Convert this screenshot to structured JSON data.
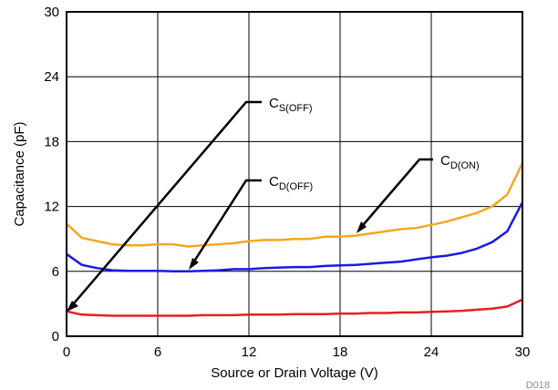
{
  "chart_data": {
    "type": "line",
    "xlabel": "Source or Drain Voltage (V)",
    "ylabel": "Capacitance (pF)",
    "xlim": [
      0,
      30
    ],
    "ylim": [
      0,
      30
    ],
    "xticks": [
      0,
      6,
      12,
      18,
      24,
      30
    ],
    "yticks": [
      0,
      6,
      12,
      18,
      24,
      30
    ],
    "grid": true,
    "figure_id": "D018",
    "series": [
      {
        "label_main": "C",
        "label_sub": "D(ON)",
        "color": "#f5a623",
        "x": [
          0,
          1,
          2,
          3,
          4,
          5,
          6,
          7,
          8,
          9,
          10,
          11,
          12,
          13,
          14,
          15,
          16,
          17,
          18,
          19,
          20,
          21,
          22,
          23,
          24,
          25,
          26,
          27,
          28,
          29,
          30
        ],
        "y": [
          10.4,
          9.1,
          8.8,
          8.5,
          8.4,
          8.4,
          8.5,
          8.5,
          8.3,
          8.4,
          8.5,
          8.6,
          8.8,
          8.9,
          8.9,
          9.0,
          9.0,
          9.2,
          9.2,
          9.3,
          9.5,
          9.7,
          9.9,
          10.0,
          10.3,
          10.6,
          11.0,
          11.4,
          12.0,
          13.1,
          16.0
        ]
      },
      {
        "label_main": "C",
        "label_sub": "D(OFF)",
        "color": "#1a1ae6",
        "x": [
          0,
          1,
          2,
          3,
          4,
          5,
          6,
          7,
          8,
          9,
          10,
          11,
          12,
          13,
          14,
          15,
          16,
          17,
          18,
          19,
          20,
          21,
          22,
          23,
          24,
          25,
          26,
          27,
          28,
          29,
          30
        ],
        "y": [
          7.6,
          6.6,
          6.3,
          6.1,
          6.05,
          6.05,
          6.05,
          6.0,
          6.0,
          6.05,
          6.1,
          6.2,
          6.2,
          6.3,
          6.35,
          6.4,
          6.4,
          6.5,
          6.55,
          6.6,
          6.7,
          6.8,
          6.9,
          7.1,
          7.3,
          7.45,
          7.7,
          8.1,
          8.7,
          9.7,
          12.4
        ]
      },
      {
        "label_main": "C",
        "label_sub": "S(OFF)",
        "color": "#e62020",
        "x": [
          0,
          1,
          2,
          3,
          4,
          5,
          6,
          7,
          8,
          9,
          10,
          11,
          12,
          13,
          14,
          15,
          16,
          17,
          18,
          19,
          20,
          21,
          22,
          23,
          24,
          25,
          26,
          27,
          28,
          29,
          30
        ],
        "y": [
          2.3,
          2.0,
          1.95,
          1.9,
          1.9,
          1.9,
          1.9,
          1.9,
          1.9,
          1.95,
          1.95,
          1.95,
          2.0,
          2.0,
          2.0,
          2.05,
          2.05,
          2.05,
          2.1,
          2.1,
          2.15,
          2.15,
          2.2,
          2.2,
          2.25,
          2.3,
          2.35,
          2.45,
          2.55,
          2.75,
          3.4
        ]
      }
    ]
  }
}
